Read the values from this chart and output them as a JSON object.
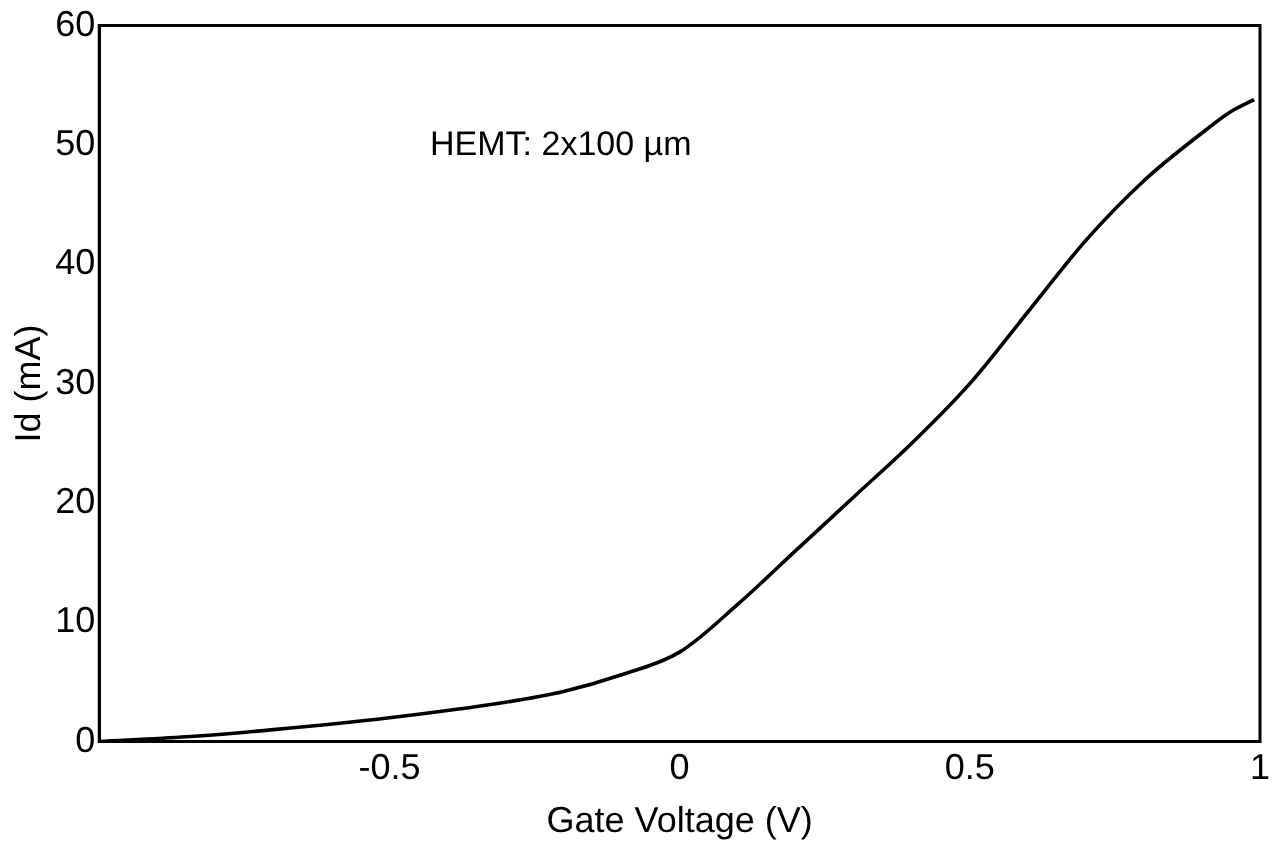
{
  "chart_data": {
    "type": "line",
    "xlabel": "Gate Voltage (V)",
    "ylabel": "Id (mA)",
    "annotations": [
      "HEMT: 2x100 µm"
    ],
    "series": [
      {
        "color": "#000000",
        "x": [
          -1.0,
          -0.85,
          -0.7,
          -0.5,
          -0.3,
          -0.2,
          -0.1,
          0,
          0.1,
          0.2,
          0.3,
          0.4,
          0.5,
          0.6,
          0.7,
          0.8,
          0.9,
          0.95,
          0.99
        ],
        "values": [
          0,
          0.4,
          1.0,
          2.0,
          3.3,
          4.2,
          5.6,
          7.5,
          11.5,
          16,
          20.5,
          25,
          30,
          36,
          42,
          47,
          51,
          52.8,
          53.8
        ]
      }
    ],
    "xlim": [
      -1,
      1
    ],
    "xticks": [
      -0.5,
      0,
      0.5,
      1
    ],
    "ylim": [
      0,
      60
    ],
    "yticks": [
      0,
      10,
      20,
      30,
      40,
      50,
      60
    ],
    "grid": false,
    "legend": false,
    "marker": "none",
    "line_style": "solid"
  }
}
